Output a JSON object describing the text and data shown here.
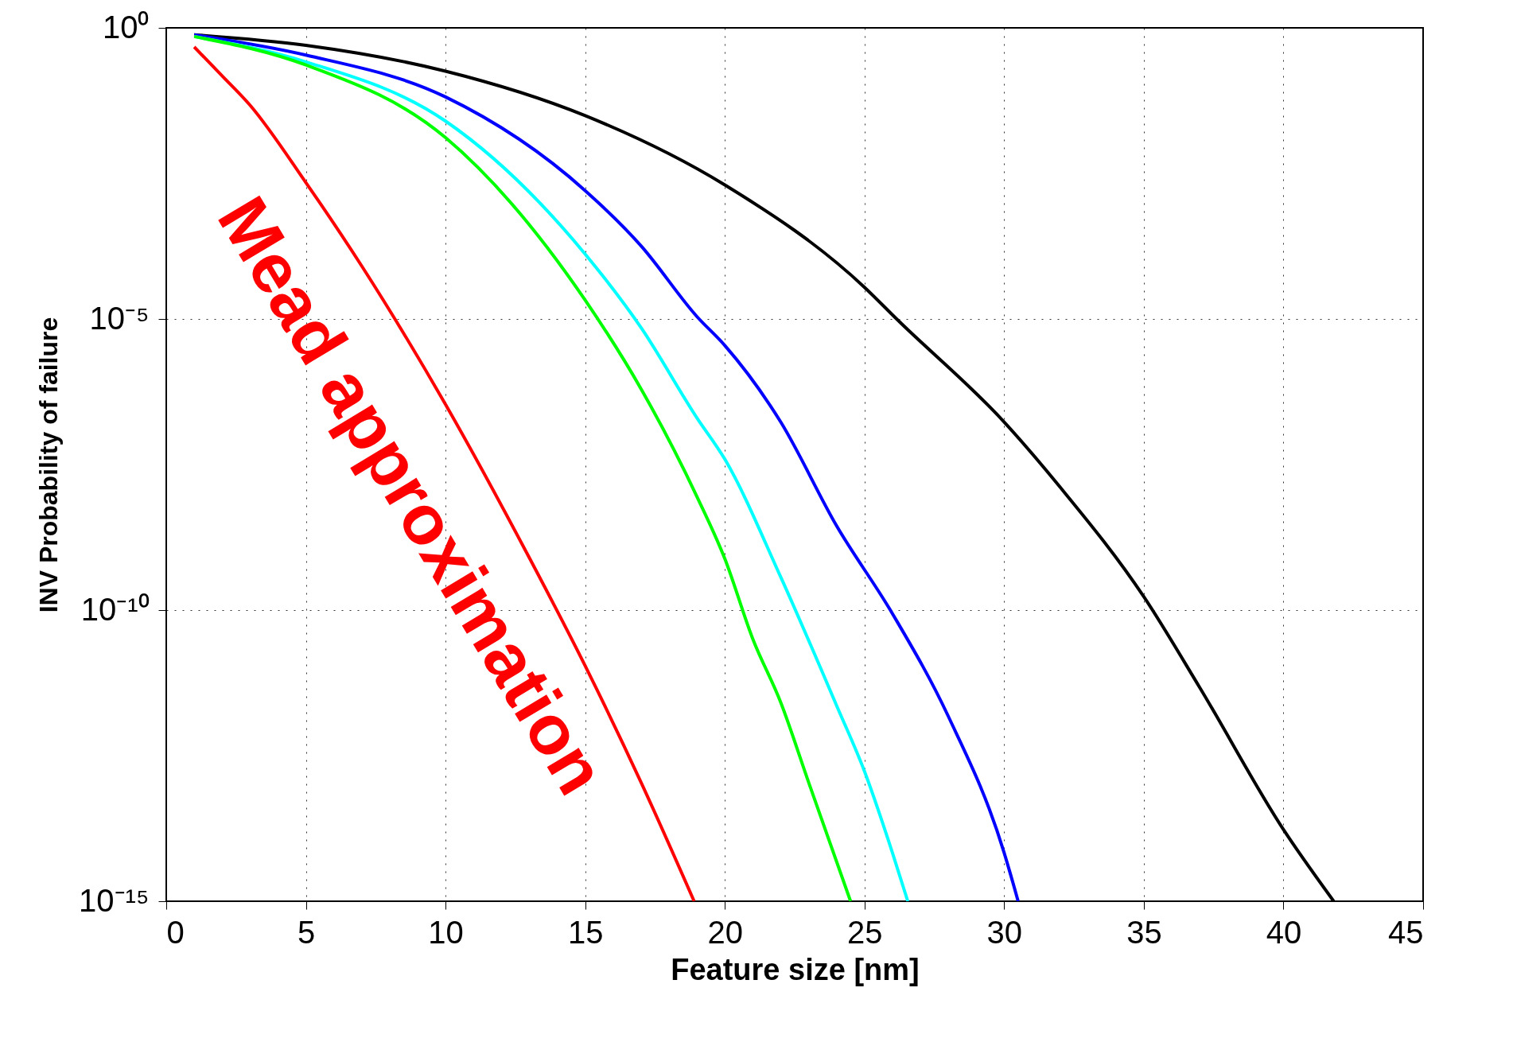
{
  "chart_data": {
    "type": "line",
    "xlabel": "Feature  size  [nm]",
    "ylabel": "INV Probability of failure",
    "log": "y",
    "grid": true,
    "legend": false,
    "line_style": "solid",
    "marker": "none",
    "xlim": [
      0,
      45
    ],
    "xticks": [
      0,
      5,
      10,
      15,
      20,
      25,
      30,
      35,
      40,
      45
    ],
    "ylim": [
      1e-15,
      1
    ],
    "yticks": [
      {
        "value": 1,
        "label": "10⁰"
      },
      {
        "value": 1e-05,
        "label": "10⁻⁵"
      },
      {
        "value": 1e-10,
        "label": "10⁻¹⁰"
      },
      {
        "value": 1e-15,
        "label": "10⁻¹⁵"
      }
    ],
    "annotations": [
      "Mead approximation"
    ],
    "series": [
      {
        "color": "#000000",
        "x": [
          1,
          5,
          10,
          15,
          20,
          25,
          26.15,
          30,
          32,
          35,
          37,
          40,
          41.8
        ],
        "values": [
          0.76,
          0.5,
          0.18,
          0.031,
          0.002,
          3.5e-05,
          1e-05,
          1.7e-07,
          1.3e-08,
          1.7e-10,
          4.7e-12,
          1.7e-14,
          1e-15
        ]
      },
      {
        "color": "#0000ff",
        "x": [
          1,
          5,
          10,
          15,
          17,
          19,
          20,
          22,
          24,
          26,
          28,
          30,
          30.5
        ],
        "values": [
          0.76,
          0.34,
          0.065,
          0.0016,
          0.00018,
          1.1e-05,
          3.5e-06,
          1.7e-07,
          2.8e-09,
          8.7e-11,
          1.5e-12,
          6.8e-15,
          1e-15
        ]
      },
      {
        "color": "#00ffff",
        "x": [
          1,
          5,
          10,
          15,
          17,
          19,
          20,
          22,
          24,
          25,
          26,
          26.55
        ],
        "values": [
          0.71,
          0.26,
          0.025,
          0.00013,
          7.1e-06,
          2e-07,
          3.9e-08,
          3.7e-10,
          2.3e-12,
          1.7e-13,
          6.8e-15,
          1e-15
        ]
      },
      {
        "color": "#00ff00",
        "x": [
          1,
          5,
          10,
          15,
          17,
          19,
          20,
          21,
          22,
          23,
          24.5
        ],
        "values": [
          0.71,
          0.23,
          0.013,
          2.1e-05,
          6.3e-07,
          8.9e-09,
          7.6e-10,
          3.2e-11,
          2.6e-12,
          1.1e-13,
          1e-15
        ]
      },
      {
        "color": "#ff0000",
        "x": [
          1,
          2,
          3,
          5,
          7,
          10,
          13,
          15,
          17,
          18.9
        ],
        "values": [
          0.47,
          0.15,
          0.047,
          0.0022,
          8.1e-05,
          3.4e-07,
          7.9e-10,
          1.1e-11,
          1.1e-13,
          1e-15
        ]
      }
    ]
  }
}
